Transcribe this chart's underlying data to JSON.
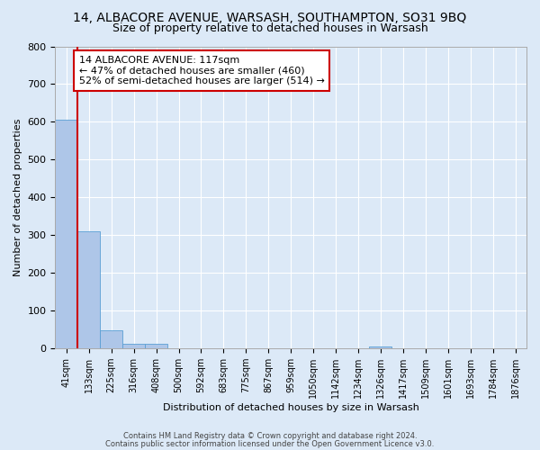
{
  "title": "14, ALBACORE AVENUE, WARSASH, SOUTHAMPTON, SO31 9BQ",
  "subtitle": "Size of property relative to detached houses in Warsash",
  "xlabel": "Distribution of detached houses by size in Warsash",
  "ylabel": "Number of detached properties",
  "categories": [
    "41sqm",
    "133sqm",
    "225sqm",
    "316sqm",
    "408sqm",
    "500sqm",
    "592sqm",
    "683sqm",
    "775sqm",
    "867sqm",
    "959sqm",
    "1050sqm",
    "1142sqm",
    "1234sqm",
    "1326sqm",
    "1417sqm",
    "1509sqm",
    "1601sqm",
    "1693sqm",
    "1784sqm",
    "1876sqm"
  ],
  "bar_heights": [
    605,
    310,
    48,
    11,
    11,
    0,
    0,
    0,
    0,
    0,
    0,
    0,
    0,
    0,
    5,
    0,
    0,
    0,
    0,
    0,
    0
  ],
  "bar_color": "#aec6e8",
  "bar_edge_color": "#5a9fd4",
  "background_color": "#dce9f7",
  "grid_color": "#ffffff",
  "property_line_color": "#cc0000",
  "annotation_line1": "14 ALBACORE AVENUE: 117sqm",
  "annotation_line2": "← 47% of detached houses are smaller (460)",
  "annotation_line3": "52% of semi-detached houses are larger (514) →",
  "annotation_box_color": "#ffffff",
  "annotation_box_edge": "#cc0000",
  "ylim": [
    0,
    800
  ],
  "yticks": [
    0,
    100,
    200,
    300,
    400,
    500,
    600,
    700,
    800
  ],
  "footer_line1": "Contains HM Land Registry data © Crown copyright and database right 2024.",
  "footer_line2": "Contains public sector information licensed under the Open Government Licence v3.0.",
  "title_fontsize": 10,
  "subtitle_fontsize": 9,
  "ylabel_text": "Number of detached properties"
}
